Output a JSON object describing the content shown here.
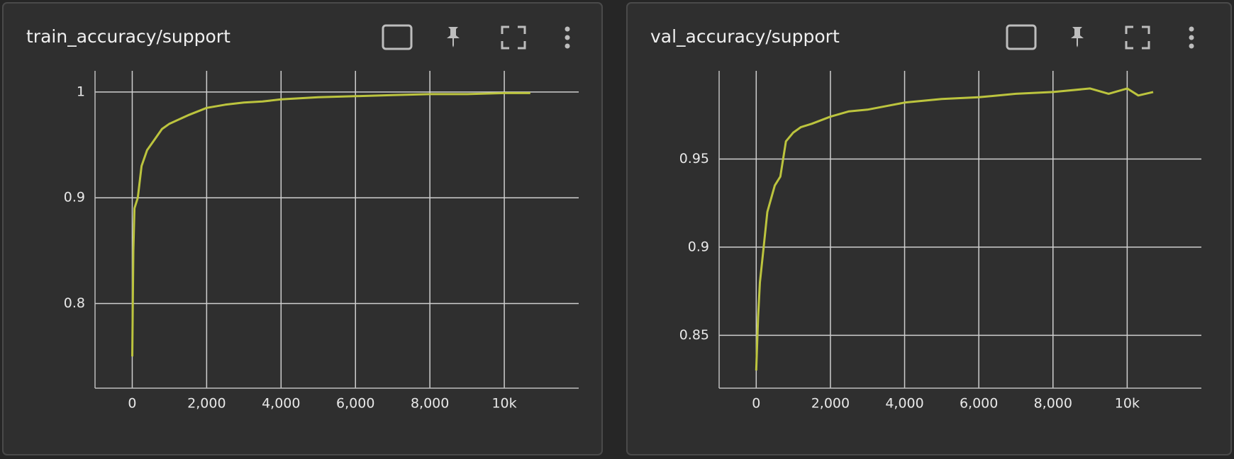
{
  "chart_data": [
    {
      "type": "line",
      "title": "train_accuracy/support",
      "color": "#bcc43e",
      "grid": true,
      "xlim": [
        -1000,
        12000
      ],
      "ylim": [
        0.72,
        1.02
      ],
      "xticks": [
        0,
        {
          "value": 2000,
          "label": "2,000"
        },
        {
          "value": 4000,
          "label": "4,000"
        },
        {
          "value": 6000,
          "label": "6,000"
        },
        {
          "value": 8000,
          "label": "8,000"
        },
        {
          "value": 10000,
          "label": "10k"
        }
      ],
      "yticks": [
        0.8,
        0.9,
        1
      ],
      "x": [
        0,
        30,
        60,
        150,
        250,
        400,
        600,
        800,
        1000,
        1500,
        2000,
        2500,
        3000,
        3500,
        4000,
        5000,
        6000,
        7000,
        8000,
        9000,
        10000,
        10700
      ],
      "values": [
        0.75,
        0.85,
        0.89,
        0.9,
        0.93,
        0.945,
        0.955,
        0.965,
        0.97,
        0.978,
        0.985,
        0.988,
        0.99,
        0.991,
        0.993,
        0.995,
        0.996,
        0.997,
        0.998,
        0.998,
        0.999,
        0.999
      ]
    },
    {
      "type": "line",
      "title": "val_accuracy/support",
      "color": "#bcc43e",
      "grid": true,
      "xlim": [
        -1000,
        12000
      ],
      "ylim": [
        0.82,
        1.0
      ],
      "xticks": [
        0,
        {
          "value": 2000,
          "label": "2,000"
        },
        {
          "value": 4000,
          "label": "4,000"
        },
        {
          "value": 6000,
          "label": "6,000"
        },
        {
          "value": 8000,
          "label": "8,000"
        },
        {
          "value": 10000,
          "label": "10k"
        }
      ],
      "yticks": [
        0.85,
        0.9,
        0.95
      ],
      "x": [
        0,
        50,
        100,
        200,
        300,
        500,
        650,
        800,
        1000,
        1200,
        1500,
        2000,
        2500,
        3000,
        3500,
        4000,
        5000,
        6000,
        7000,
        8000,
        9000,
        9500,
        10000,
        10300,
        10700
      ],
      "values": [
        0.83,
        0.86,
        0.88,
        0.9,
        0.92,
        0.935,
        0.94,
        0.96,
        0.965,
        0.968,
        0.97,
        0.974,
        0.977,
        0.978,
        0.98,
        0.982,
        0.984,
        0.985,
        0.987,
        0.988,
        0.99,
        0.987,
        0.99,
        0.986,
        0.988
      ]
    }
  ]
}
